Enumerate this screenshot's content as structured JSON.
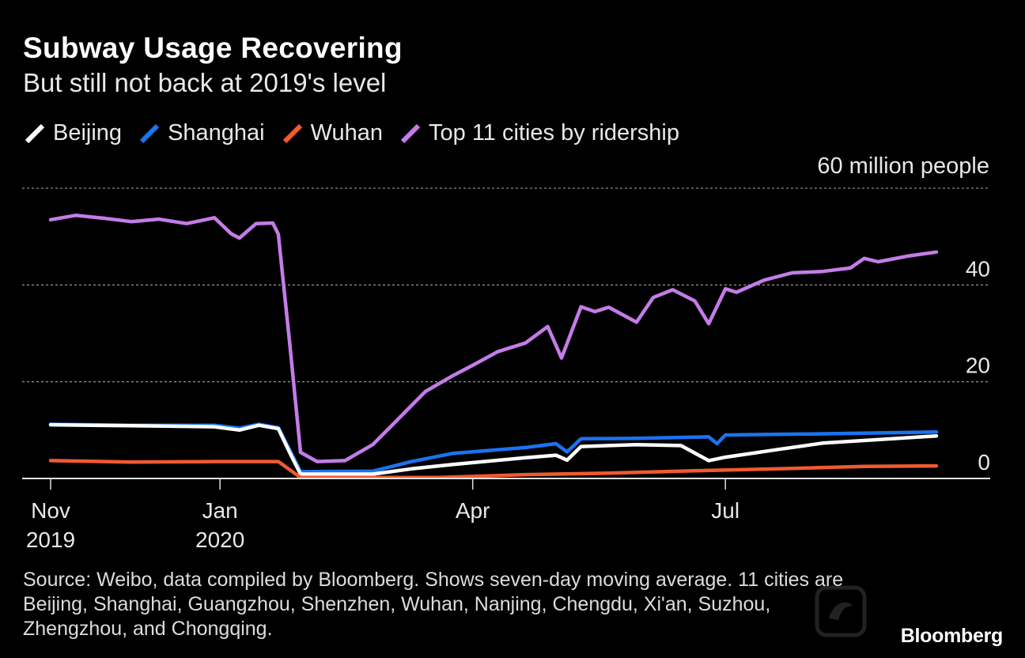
{
  "header": {
    "title": "Subway Usage Recovering",
    "subtitle": "But still not back at 2019's level"
  },
  "legend": [
    {
      "label": "Beijing",
      "color": "#ffffff"
    },
    {
      "label": "Shanghai",
      "color": "#1a73f0"
    },
    {
      "label": "Wuhan",
      "color": "#f05a30"
    },
    {
      "label": "Top 11 cities by ridership",
      "color": "#c47ce8"
    }
  ],
  "unit_label": "60 million people",
  "footnote": "Source: Weibo, data compiled by Bloomberg. Shows seven-day moving average. 11 cities are Beijing, Shanghai, Guangzhou, Shenzhen, Wuhan, Nanjing, Chengdu, Xi'an, Suzhou, Zhengzhou, and Chongqing.",
  "brand": "Bloomberg",
  "chart_data": {
    "type": "line",
    "x_unit": "date",
    "ylim": [
      0,
      60
    ],
    "y_ticks": [
      0,
      20,
      40,
      60
    ],
    "y_tick_labels": [
      "0",
      "20",
      "40",
      ""
    ],
    "x_ticks": [
      {
        "date": "2019-11-01",
        "line1": "Nov",
        "line2": "2019"
      },
      {
        "date": "2020-01-01",
        "line1": "Jan",
        "line2": "2020"
      },
      {
        "date": "2020-04-01",
        "line1": "Apr",
        "line2": ""
      },
      {
        "date": "2020-07-01",
        "line1": "Jul",
        "line2": ""
      }
    ],
    "grid": true,
    "series": [
      {
        "name": "Top 11 cities by ridership",
        "color": "#c47ce8",
        "points": [
          [
            "2019-11-01",
            53.5
          ],
          [
            "2019-11-10",
            54.4
          ],
          [
            "2019-11-20",
            53.8
          ],
          [
            "2019-11-30",
            53.1
          ],
          [
            "2019-12-10",
            53.6
          ],
          [
            "2019-12-20",
            52.7
          ],
          [
            "2019-12-30",
            53.9
          ],
          [
            "2020-01-05",
            50.6
          ],
          [
            "2020-01-08",
            49.7
          ],
          [
            "2020-01-14",
            52.7
          ],
          [
            "2020-01-20",
            52.8
          ],
          [
            "2020-01-22",
            50.5
          ],
          [
            "2020-01-26",
            28.6
          ],
          [
            "2020-01-30",
            5.4
          ],
          [
            "2020-02-05",
            3.5
          ],
          [
            "2020-02-15",
            3.7
          ],
          [
            "2020-02-25",
            7.0
          ],
          [
            "2020-03-05",
            12.2
          ],
          [
            "2020-03-15",
            18.0
          ],
          [
            "2020-03-25",
            21.3
          ],
          [
            "2020-04-01",
            23.4
          ],
          [
            "2020-04-10",
            26.2
          ],
          [
            "2020-04-20",
            28.0
          ],
          [
            "2020-04-28",
            31.4
          ],
          [
            "2020-05-03",
            24.9
          ],
          [
            "2020-05-10",
            35.5
          ],
          [
            "2020-05-15",
            34.5
          ],
          [
            "2020-05-20",
            35.4
          ],
          [
            "2020-05-30",
            32.3
          ],
          [
            "2020-06-05",
            37.4
          ],
          [
            "2020-06-12",
            39.0
          ],
          [
            "2020-06-20",
            36.7
          ],
          [
            "2020-06-25",
            32.0
          ],
          [
            "2020-07-01",
            39.2
          ],
          [
            "2020-07-05",
            38.5
          ],
          [
            "2020-07-15",
            41.0
          ],
          [
            "2020-07-25",
            42.5
          ],
          [
            "2020-08-05",
            42.8
          ],
          [
            "2020-08-15",
            43.5
          ],
          [
            "2020-08-20",
            45.5
          ],
          [
            "2020-08-25",
            44.8
          ],
          [
            "2020-09-05",
            46.0
          ],
          [
            "2020-09-15",
            46.8
          ]
        ]
      },
      {
        "name": "Shanghai",
        "color": "#1a73f0",
        "points": [
          [
            "2019-11-01",
            11.2
          ],
          [
            "2019-11-30",
            11.0
          ],
          [
            "2019-12-30",
            11.0
          ],
          [
            "2020-01-08",
            10.4
          ],
          [
            "2020-01-15",
            11.2
          ],
          [
            "2020-01-22",
            10.5
          ],
          [
            "2020-01-26",
            6.0
          ],
          [
            "2020-01-30",
            1.4
          ],
          [
            "2020-02-25",
            1.5
          ],
          [
            "2020-03-10",
            3.5
          ],
          [
            "2020-03-25",
            5.2
          ],
          [
            "2020-04-20",
            6.4
          ],
          [
            "2020-05-01",
            7.2
          ],
          [
            "2020-05-05",
            5.5
          ],
          [
            "2020-05-10",
            8.2
          ],
          [
            "2020-05-30",
            8.3
          ],
          [
            "2020-06-25",
            8.6
          ],
          [
            "2020-06-28",
            7.2
          ],
          [
            "2020-07-01",
            9.0
          ],
          [
            "2020-08-01",
            9.2
          ],
          [
            "2020-09-15",
            9.6
          ]
        ]
      },
      {
        "name": "Beijing",
        "color": "#ffffff",
        "points": [
          [
            "2019-11-01",
            11.1
          ],
          [
            "2019-11-30",
            10.9
          ],
          [
            "2019-12-30",
            10.7
          ],
          [
            "2020-01-08",
            10.0
          ],
          [
            "2020-01-15",
            11.0
          ],
          [
            "2020-01-22",
            10.3
          ],
          [
            "2020-01-26",
            5.5
          ],
          [
            "2020-01-30",
            0.9
          ],
          [
            "2020-02-25",
            0.9
          ],
          [
            "2020-03-10",
            2.0
          ],
          [
            "2020-03-25",
            2.9
          ],
          [
            "2020-04-20",
            4.3
          ],
          [
            "2020-05-01",
            4.8
          ],
          [
            "2020-05-05",
            3.8
          ],
          [
            "2020-05-10",
            6.6
          ],
          [
            "2020-05-30",
            7.0
          ],
          [
            "2020-06-15",
            6.8
          ],
          [
            "2020-06-25",
            3.7
          ],
          [
            "2020-07-01",
            4.4
          ],
          [
            "2020-07-20",
            6.0
          ],
          [
            "2020-08-05",
            7.3
          ],
          [
            "2020-09-15",
            8.8
          ]
        ]
      },
      {
        "name": "Wuhan",
        "color": "#f05a30",
        "points": [
          [
            "2019-11-01",
            3.7
          ],
          [
            "2019-11-30",
            3.4
          ],
          [
            "2019-12-30",
            3.5
          ],
          [
            "2020-01-22",
            3.5
          ],
          [
            "2020-01-30",
            0.2
          ],
          [
            "2020-03-20",
            0.2
          ],
          [
            "2020-04-20",
            0.8
          ],
          [
            "2020-05-20",
            1.1
          ],
          [
            "2020-06-20",
            1.6
          ],
          [
            "2020-07-20",
            2.0
          ],
          [
            "2020-08-20",
            2.5
          ],
          [
            "2020-09-15",
            2.6
          ]
        ]
      }
    ]
  }
}
